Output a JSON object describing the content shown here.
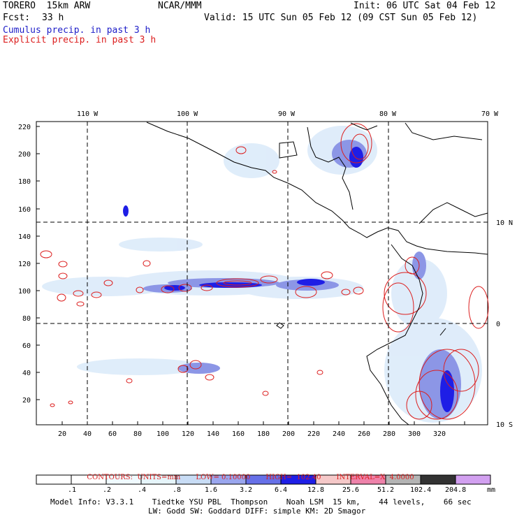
{
  "header": {
    "model": "TORERO  15km ARW",
    "org": "NCAR/MMM",
    "init": "Init: 06 UTC Sat 04 Feb 12",
    "fcst_label": "Fcst:",
    "fcst_value": "33 h",
    "valid": "Valid: 15 UTC Sun 05 Feb 12 (09 CST Sun 05 Feb 12)",
    "line_cumulus": "Cumulus precip. in past 3 h",
    "line_explicit": "Explicit precip. in past 3 h"
  },
  "map": {
    "lon_labels": [
      "110 W",
      "100 W",
      "90 W",
      "80 W",
      "70 W"
    ],
    "lat_labels": [
      "10 N",
      "0",
      "10 S"
    ],
    "y_ticks": [
      "220",
      "200",
      "180",
      "160",
      "140",
      "120",
      "100",
      "80",
      "60",
      "40",
      "20"
    ],
    "x_ticks": [
      "20",
      "40",
      "60",
      "80",
      "100",
      "120",
      "140",
      "160",
      "180",
      "200",
      "220",
      "240",
      "260",
      "280",
      "300",
      "320"
    ],
    "colors": {
      "coast": "#000000",
      "gridline": "#000000",
      "cumulus_light": "#dcebfa",
      "cumulus_mid": "#8c96e6",
      "cumulus_dark": "#1e1ee6",
      "explicit": "#dc1e1e"
    }
  },
  "contours_line": {
    "label": "CONTOURS:  UNITS=mm",
    "low": "LOW= 0.10000",
    "high": "HIGH=  102.40",
    "interval": "INTERVAL=X  4.0000"
  },
  "colorbar": {
    "labels": [
      ".1",
      ".2",
      ".4",
      ".8",
      "1.6",
      "3.2",
      "6.4",
      "12.8",
      "25.6",
      "51.2",
      "102.4",
      "204.8"
    ],
    "unit": "mm",
    "colors": [
      "#ffffff",
      "#ffffff",
      "#f0faff",
      "#e6f5fa",
      "#c8dcf5",
      "#9aa6ee",
      "#6670e8",
      "#1e1ee6",
      "#f5c8c8",
      "#ee82aa",
      "#b4b4b4",
      "#323232",
      "#d2a0f0"
    ]
  },
  "footer": {
    "line1": "Model Info: V3.3.1    Tiedtke YSU PBL  Thompson    Noah LSM  15 km,    44 levels,    66 sec",
    "line2": "LW: Godd SW: Goddard DIFF: simple KM: 2D Smagor"
  }
}
